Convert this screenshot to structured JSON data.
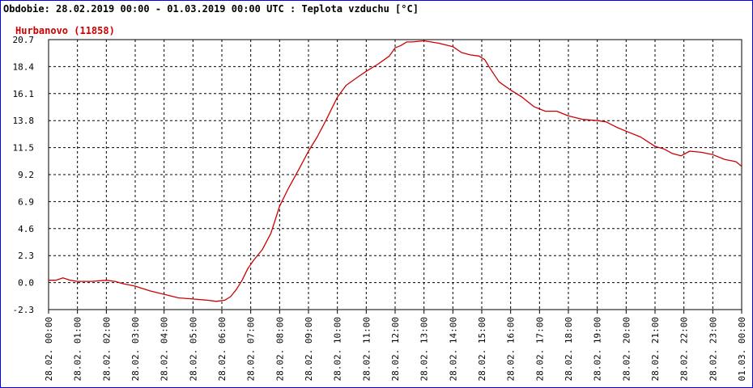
{
  "header": {
    "text": "Obdobie: 28.02.2019 00:00 - 01.03.2019 00:00 UTC : Teplota vzduchu [°C]"
  },
  "chart_data": {
    "type": "line",
    "title": "",
    "xlabel": "",
    "ylabel": "",
    "station_label": "Hurbanovo (11858)",
    "ylim": [
      -2.3,
      20.7
    ],
    "yticks": [
      "20.7",
      "18.4",
      "16.1",
      "13.8",
      "11.5",
      "9.2",
      "6.9",
      "4.6",
      "2.3",
      "0.0",
      "-2.3"
    ],
    "xlim_hours": [
      0,
      24
    ],
    "xticks": [
      "28.02. 00:00",
      "28.02. 01:00",
      "28.02. 02:00",
      "28.02. 03:00",
      "28.02. 04:00",
      "28.02. 05:00",
      "28.02. 06:00",
      "28.02. 07:00",
      "28.02. 08:00",
      "28.02. 09:00",
      "28.02. 10:00",
      "28.02. 11:00",
      "28.02. 12:00",
      "28.02. 13:00",
      "28.02. 14:00",
      "28.02. 15:00",
      "28.02. 16:00",
      "28.02. 17:00",
      "28.02. 18:00",
      "28.02. 19:00",
      "28.02. 20:00",
      "28.02. 21:00",
      "28.02. 22:00",
      "28.02. 23:00",
      "01.03. 00:00"
    ],
    "grid": true,
    "colors": {
      "series": "#cc0000",
      "station_label": "#cc0000",
      "frame": "#0000ff",
      "grid": "#000000"
    },
    "series": [
      {
        "x": [
          0,
          0.25,
          0.5,
          0.75,
          1,
          1.5,
          2,
          2.3,
          2.6,
          3,
          3.5,
          4,
          4.5,
          5,
          5.5,
          5.8,
          6.1,
          6.3,
          6.5,
          6.7,
          6.9,
          7.1,
          7.4,
          7.7,
          8,
          8.3,
          8.7,
          9,
          9.3,
          9.6,
          10,
          10.3,
          10.7,
          11,
          11.4,
          11.8,
          12,
          12.2,
          12.4,
          12.6,
          13,
          13.5,
          14,
          14.3,
          14.6,
          14.9,
          15.1,
          15.3,
          15.6,
          16,
          16.4,
          16.8,
          17.2,
          17.6,
          18,
          18.5,
          19,
          19.3,
          19.7,
          20,
          20.5,
          21,
          21.3,
          21.6,
          21.9,
          22.2,
          22.6,
          23,
          23.4,
          23.8,
          24
        ],
        "y": [
          0.2,
          0.2,
          0.4,
          0.2,
          0.1,
          0.1,
          0.2,
          0.1,
          -0.1,
          -0.3,
          -0.7,
          -1.0,
          -1.3,
          -1.4,
          -1.5,
          -1.6,
          -1.5,
          -1.2,
          -0.6,
          0.2,
          1.2,
          1.9,
          2.8,
          4.2,
          6.5,
          8.0,
          9.8,
          11.2,
          12.4,
          13.8,
          15.8,
          16.8,
          17.5,
          18.0,
          18.6,
          19.3,
          20.0,
          20.2,
          20.5,
          20.5,
          20.6,
          20.4,
          20.1,
          19.6,
          19.4,
          19.3,
          19.0,
          18.2,
          17.1,
          16.4,
          15.8,
          15.0,
          14.6,
          14.6,
          14.2,
          13.9,
          13.8,
          13.7,
          13.2,
          12.9,
          12.4,
          11.6,
          11.4,
          11.0,
          10.8,
          11.2,
          11.1,
          10.9,
          10.5,
          10.3,
          9.9
        ]
      }
    ]
  }
}
